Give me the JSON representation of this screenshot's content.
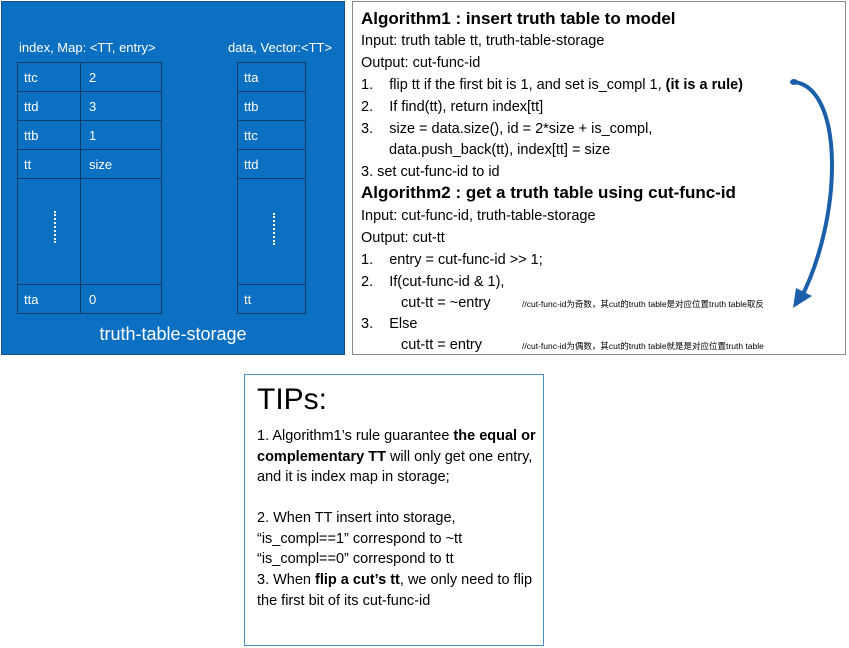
{
  "storage": {
    "map_caption": "index, Map: <TT, entry>",
    "vector_caption": "data, Vector:<TT>",
    "map_rows": [
      {
        "tt": "ttc",
        "entry": "2"
      },
      {
        "tt": "ttd",
        "entry": "3"
      },
      {
        "tt": "ttb",
        "entry": "1"
      },
      {
        "tt": "tt",
        "entry": "size"
      }
    ],
    "map_last": {
      "tt": "tta",
      "entry": "0"
    },
    "vector_rows": [
      "tta",
      "ttb",
      "ttc",
      "ttd"
    ],
    "vector_last": "tt",
    "title": "truth-table-storage"
  },
  "algo1": {
    "title": "Algorithm1 : insert truth table to model",
    "input": "Input: truth table tt, truth-table-storage",
    "output": "Output: cut-func-id",
    "s1_num": "1.",
    "s1_text": "flip tt if the first bit is 1, and set is_compl 1, ",
    "s1_bold": "(it is a rule)",
    "s2_num": "2.",
    "s2_text": "If find(tt), return index[tt]",
    "s3_num": "3.",
    "s3_text": "size = data.size(), id = 2*size + is_compl,",
    "s3_cont": "data.push_back(tt), index[tt] = size",
    "s4": "3.   set cut-func-id to id"
  },
  "algo2": {
    "title": "Algorithm2 : get a truth table using cut-func-id",
    "input": "Input: cut-func-id, truth-table-storage",
    "output": "Output: cut-tt",
    "s1_num": "1.",
    "s1_text": "entry = cut-func-id >> 1;",
    "s2_num": "2.",
    "s2_text": "If(cut-func-id & 1),",
    "s2_cont": "cut-tt = ~entry",
    "s2_note": "//cut-func-id为奇数，其cut的truth table是对应位置truth table取反",
    "s3_num": "3.",
    "s3_text": "Else",
    "s3_cont": "cut-tt = entry",
    "s3_note": "//cut-func-id为偶数，其cut的truth table就是是对应位置truth table"
  },
  "tips": {
    "title": "TIPs:",
    "t1_a": "1.    Algorithm1’s rule guarantee ",
    "t1_b": "the equal or complementary TT",
    "t1_c": " will only get one entry, and it is index map in storage;",
    "t2": "2.    When TT insert into storage, “is_compl==1” correspond to ~tt “is_compl==0” correspond to tt",
    "t3_a": "3.    When ",
    "t3_b": "flip a cut’s tt",
    "t3_c": ", we only need to flip the first bit of its cut-func-id"
  },
  "colors": {
    "storage_bg": "#0b6fc2",
    "arrow": "#1b5fa8",
    "tips_border": "#4a90d0"
  }
}
